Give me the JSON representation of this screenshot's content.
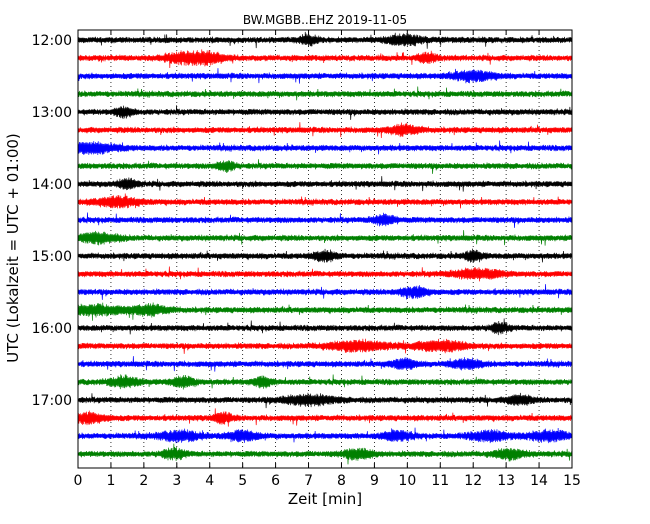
{
  "chart_data": {
    "type": "line",
    "title": "BW.MGBB..EHZ 2019-11-05",
    "xlabel": "Zeit  [min]",
    "ylabel": "UTC (Lokalzeit = UTC + 01:00)",
    "xlim": [
      0,
      15
    ],
    "x_ticks": [
      "0",
      "1",
      "2",
      "3",
      "4",
      "5",
      "6",
      "7",
      "8",
      "9",
      "10",
      "11",
      "12",
      "13",
      "14",
      "15"
    ],
    "y_ticks": [
      "12:00",
      "13:00",
      "14:00",
      "15:00",
      "16:00",
      "17:00"
    ],
    "grid": "vertical dotted",
    "trace_interval_minutes": 15,
    "series": [
      {
        "start": "12:00",
        "color": "#000000",
        "bursts": [
          [
            7.0,
            0.3
          ],
          [
            9.9,
            0.6
          ]
        ]
      },
      {
        "start": "12:15",
        "color": "#ff0000",
        "bursts": [
          [
            3.2,
            0.7
          ],
          [
            4.0,
            0.6
          ],
          [
            10.6,
            0.3
          ]
        ]
      },
      {
        "start": "12:30",
        "color": "#0000ff",
        "bursts": [
          [
            12.0,
            0.7
          ]
        ]
      },
      {
        "start": "12:45",
        "color": "#008000",
        "bursts": []
      },
      {
        "start": "13:00",
        "color": "#000000",
        "bursts": [
          [
            1.4,
            0.3
          ]
        ]
      },
      {
        "start": "13:15",
        "color": "#ff0000",
        "bursts": [
          [
            9.9,
            0.5
          ]
        ]
      },
      {
        "start": "13:30",
        "color": "#0000ff",
        "bursts": [
          [
            0.4,
            0.9
          ]
        ]
      },
      {
        "start": "13:45",
        "color": "#008000",
        "bursts": [
          [
            4.5,
            0.3
          ]
        ]
      },
      {
        "start": "14:00",
        "color": "#000000",
        "bursts": [
          [
            1.5,
            0.3
          ]
        ]
      },
      {
        "start": "14:15",
        "color": "#ff0000",
        "bursts": [
          [
            1.2,
            0.7
          ]
        ]
      },
      {
        "start": "14:30",
        "color": "#0000ff",
        "bursts": [
          [
            9.3,
            0.4
          ]
        ]
      },
      {
        "start": "14:45",
        "color": "#008000",
        "bursts": [
          [
            0.6,
            0.7
          ]
        ]
      },
      {
        "start": "15:00",
        "color": "#000000",
        "bursts": [
          [
            7.5,
            0.4
          ],
          [
            12.0,
            0.3
          ]
        ]
      },
      {
        "start": "15:15",
        "color": "#ff0000",
        "bursts": [
          [
            12.1,
            0.8
          ]
        ]
      },
      {
        "start": "15:30",
        "color": "#0000ff",
        "bursts": [
          [
            10.2,
            0.5
          ]
        ]
      },
      {
        "start": "15:45",
        "color": "#008000",
        "bursts": [
          [
            0.5,
            1.0
          ],
          [
            2.2,
            0.6
          ]
        ]
      },
      {
        "start": "16:00",
        "color": "#000000",
        "bursts": [
          [
            12.8,
            0.3
          ]
        ]
      },
      {
        "start": "16:15",
        "color": "#ff0000",
        "bursts": [
          [
            8.5,
            1.0
          ],
          [
            11.0,
            0.9
          ]
        ]
      },
      {
        "start": "16:30",
        "color": "#0000ff",
        "bursts": [
          [
            9.9,
            0.4
          ],
          [
            11.8,
            0.5
          ]
        ]
      },
      {
        "start": "16:45",
        "color": "#008000",
        "bursts": [
          [
            1.4,
            0.5
          ],
          [
            3.2,
            0.4
          ],
          [
            5.6,
            0.3
          ]
        ]
      },
      {
        "start": "17:00",
        "color": "#000000",
        "bursts": [
          [
            7.0,
            0.9
          ],
          [
            13.4,
            0.4
          ]
        ]
      },
      {
        "start": "17:15",
        "color": "#ff0000",
        "bursts": [
          [
            0.3,
            0.6
          ],
          [
            4.4,
            0.3
          ]
        ]
      },
      {
        "start": "17:30",
        "color": "#0000ff",
        "bursts": [
          [
            3.1,
            0.7
          ],
          [
            5.0,
            0.5
          ],
          [
            9.7,
            0.5
          ],
          [
            12.5,
            0.7
          ],
          [
            14.3,
            0.7
          ]
        ]
      },
      {
        "start": "17:45",
        "color": "#008000",
        "bursts": [
          [
            2.9,
            0.4
          ],
          [
            8.5,
            0.5
          ],
          [
            13.1,
            0.5
          ]
        ]
      }
    ]
  }
}
